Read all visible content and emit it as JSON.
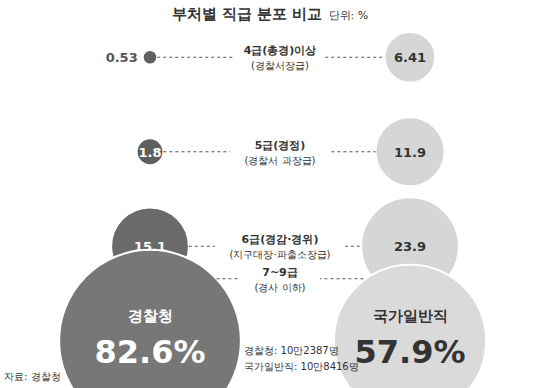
{
  "chart_data": {
    "type": "bubble",
    "title": "부처별 직급 분포 비교",
    "unit_label": "단위: %",
    "categories": [
      "4급(총경)이상",
      "5급(경정)",
      "6급(경감·경위)",
      "7~9급"
    ],
    "category_notes": [
      "(경찰서장급)",
      "(경찰서 과장급)",
      "(지구대장·파출소장급)",
      "(경사 이하)"
    ],
    "series": [
      {
        "name": "경찰청",
        "colors": [
          "#5f5f5f",
          "#5f5f5f",
          "#6a6a6a",
          "#777777"
        ],
        "values": [
          0.53,
          1.8,
          15.1,
          82.6
        ],
        "value_labels": [
          "0.53",
          "1.8",
          "15.1",
          "82.6%"
        ]
      },
      {
        "name": "국가일반직",
        "colors": [
          "#d6d6d6",
          "#d6d6d6",
          "#d6d6d6",
          "#dadada"
        ],
        "values": [
          6.41,
          11.9,
          23.9,
          57.9
        ],
        "value_labels": [
          "6.41",
          "11.9",
          "23.9",
          "57.9%"
        ]
      }
    ],
    "data_labels": true,
    "tick_labels": false,
    "notes": [
      "경찰청: 10만2387명",
      "국가일반직: 10만8416명"
    ],
    "source": "자료: 경찰청"
  }
}
